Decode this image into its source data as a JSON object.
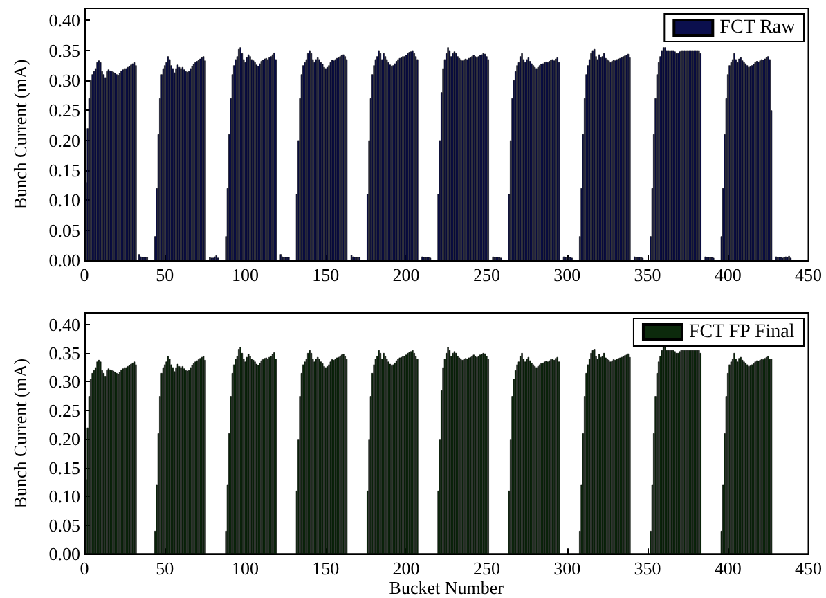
{
  "chart_data": [
    {
      "type": "bar",
      "ylabel": "Bunch Current (mA)",
      "legend": "top right",
      "grid": false,
      "xlim": [
        0,
        450
      ],
      "xticks": [
        0,
        50,
        100,
        150,
        200,
        250,
        300,
        350,
        400,
        450
      ],
      "ylim": [
        0,
        0.42
      ],
      "yticks": [
        {
          "value": 0,
          "label": "0.00"
        },
        {
          "value": 0.05,
          "label": "0.05"
        },
        {
          "value": 0.1,
          "label": "0.10"
        },
        {
          "value": 0.15,
          "label": "0.15"
        },
        {
          "value": 0.2,
          "label": "0.20"
        },
        {
          "value": 0.25,
          "label": "0.25"
        },
        {
          "value": 0.3,
          "label": "0.30"
        },
        {
          "value": 0.35,
          "label": "0.35"
        },
        {
          "value": 0.4,
          "label": "0.40"
        }
      ],
      "series": [
        {
          "name": "FCT Raw",
          "color": "#0b0f4d",
          "x": [
            1,
            2,
            3,
            4,
            5,
            6,
            7,
            8,
            9,
            10,
            11,
            12,
            13,
            14,
            15,
            16,
            17,
            18,
            19,
            20,
            21,
            22,
            23,
            24,
            25,
            26,
            27,
            28,
            29,
            30,
            31,
            32,
            34,
            35,
            36,
            37,
            38,
            39,
            44,
            45,
            46,
            47,
            48,
            49,
            50,
            51,
            52,
            53,
            54,
            55,
            56,
            57,
            58,
            59,
            60,
            61,
            62,
            63,
            64,
            65,
            66,
            67,
            68,
            69,
            70,
            71,
            72,
            73,
            74,
            75,
            78,
            79,
            80,
            81,
            82,
            83,
            88,
            89,
            90,
            91,
            92,
            93,
            94,
            95,
            96,
            97,
            98,
            99,
            100,
            101,
            102,
            103,
            104,
            105,
            106,
            107,
            108,
            109,
            110,
            111,
            112,
            113,
            114,
            115,
            116,
            117,
            118,
            119,
            122,
            123,
            124,
            125,
            126,
            127,
            132,
            133,
            134,
            135,
            136,
            137,
            138,
            139,
            140,
            141,
            142,
            143,
            144,
            145,
            146,
            147,
            148,
            149,
            150,
            151,
            152,
            153,
            154,
            155,
            156,
            157,
            158,
            159,
            160,
            161,
            162,
            163,
            166,
            167,
            168,
            169,
            170,
            171,
            176,
            177,
            178,
            179,
            180,
            181,
            182,
            183,
            184,
            185,
            186,
            187,
            188,
            189,
            190,
            191,
            192,
            193,
            194,
            195,
            196,
            197,
            198,
            199,
            200,
            201,
            202,
            203,
            204,
            205,
            206,
            207,
            210,
            211,
            212,
            213,
            214,
            215,
            220,
            221,
            222,
            223,
            224,
            225,
            226,
            227,
            228,
            229,
            230,
            231,
            232,
            233,
            234,
            235,
            236,
            237,
            238,
            239,
            240,
            241,
            242,
            243,
            244,
            245,
            246,
            247,
            248,
            249,
            250,
            251,
            254,
            255,
            256,
            257,
            258,
            259,
            264,
            265,
            266,
            267,
            268,
            269,
            270,
            271,
            272,
            273,
            274,
            275,
            276,
            277,
            278,
            279,
            280,
            281,
            282,
            283,
            284,
            285,
            286,
            287,
            288,
            289,
            290,
            291,
            292,
            293,
            294,
            295,
            298,
            299,
            300,
            301,
            302,
            303,
            308,
            309,
            310,
            311,
            312,
            313,
            314,
            315,
            316,
            317,
            318,
            319,
            320,
            321,
            322,
            323,
            324,
            325,
            326,
            327,
            328,
            329,
            330,
            331,
            332,
            333,
            334,
            335,
            336,
            337,
            338,
            339,
            342,
            343,
            344,
            345,
            346,
            347,
            352,
            353,
            354,
            355,
            356,
            357,
            358,
            359,
            360,
            361,
            362,
            363,
            364,
            365,
            366,
            367,
            368,
            369,
            370,
            371,
            372,
            373,
            374,
            375,
            376,
            377,
            378,
            379,
            380,
            381,
            382,
            383,
            386,
            387,
            388,
            389,
            390,
            391,
            396,
            397,
            398,
            399,
            400,
            401,
            402,
            403,
            404,
            405,
            406,
            407,
            408,
            409,
            410,
            411,
            412,
            413,
            414,
            415,
            416,
            417,
            418,
            419,
            420,
            421,
            422,
            423,
            424,
            425,
            426,
            427,
            430,
            431,
            432,
            433,
            434,
            435,
            436,
            437,
            438,
            439
          ],
          "values": [
            0.13,
            0.22,
            0.27,
            0.3,
            0.31,
            0.315,
            0.32,
            0.33,
            0.333,
            0.33,
            0.315,
            0.31,
            0.305,
            0.315,
            0.318,
            0.316,
            0.315,
            0.314,
            0.312,
            0.31,
            0.308,
            0.312,
            0.316,
            0.318,
            0.32,
            0.32,
            0.322,
            0.324,
            0.326,
            0.328,
            0.33,
            0.325,
            0.01,
            0.006,
            0.005,
            0.005,
            0.005,
            0.005,
            0.04,
            0.12,
            0.21,
            0.27,
            0.31,
            0.32,
            0.325,
            0.33,
            0.34,
            0.335,
            0.325,
            0.32,
            0.313,
            0.32,
            0.326,
            0.322,
            0.32,
            0.322,
            0.318,
            0.315,
            0.314,
            0.315,
            0.32,
            0.324,
            0.327,
            0.33,
            0.332,
            0.334,
            0.336,
            0.338,
            0.34,
            0.333,
            0.005,
            0.004,
            0.004,
            0.006,
            0.008,
            0.004,
            0.04,
            0.12,
            0.21,
            0.27,
            0.31,
            0.325,
            0.335,
            0.34,
            0.352,
            0.355,
            0.345,
            0.335,
            0.33,
            0.338,
            0.343,
            0.34,
            0.335,
            0.333,
            0.33,
            0.326,
            0.324,
            0.328,
            0.332,
            0.334,
            0.336,
            0.337,
            0.335,
            0.338,
            0.34,
            0.343,
            0.346,
            0.335,
            0.01,
            0.006,
            0.005,
            0.005,
            0.005,
            0.005,
            0.11,
            0.2,
            0.27,
            0.31,
            0.325,
            0.33,
            0.335,
            0.345,
            0.35,
            0.345,
            0.335,
            0.33,
            0.335,
            0.338,
            0.335,
            0.33,
            0.327,
            0.322,
            0.32,
            0.322,
            0.325,
            0.33,
            0.334,
            0.333,
            0.335,
            0.337,
            0.338,
            0.34,
            0.342,
            0.343,
            0.34,
            0.335,
            0.009,
            0.006,
            0.005,
            0.005,
            0.005,
            0.005,
            0.11,
            0.2,
            0.27,
            0.31,
            0.325,
            0.335,
            0.34,
            0.35,
            0.345,
            0.335,
            0.345,
            0.34,
            0.335,
            0.33,
            0.326,
            0.323,
            0.325,
            0.328,
            0.332,
            0.335,
            0.337,
            0.338,
            0.34,
            0.34,
            0.342,
            0.345,
            0.347,
            0.348,
            0.35,
            0.345,
            0.34,
            0.335,
            0.006,
            0.005,
            0.005,
            0.005,
            0.005,
            0.004,
            0.11,
            0.2,
            0.28,
            0.32,
            0.335,
            0.345,
            0.355,
            0.35,
            0.34,
            0.345,
            0.348,
            0.345,
            0.34,
            0.337,
            0.335,
            0.333,
            0.335,
            0.336,
            0.335,
            0.337,
            0.338,
            0.34,
            0.342,
            0.34,
            0.338,
            0.34,
            0.342,
            0.343,
            0.345,
            0.344,
            0.34,
            0.335,
            0.006,
            0.005,
            0.005,
            0.005,
            0.005,
            0.004,
            0.11,
            0.2,
            0.27,
            0.3,
            0.315,
            0.325,
            0.33,
            0.34,
            0.345,
            0.335,
            0.33,
            0.335,
            0.338,
            0.332,
            0.328,
            0.325,
            0.322,
            0.32,
            0.322,
            0.325,
            0.327,
            0.328,
            0.33,
            0.331,
            0.33,
            0.332,
            0.334,
            0.335,
            0.333,
            0.336,
            0.338,
            0.33,
            0.006,
            0.005,
            0.005,
            0.005,
            0.005,
            0.004,
            0.04,
            0.12,
            0.21,
            0.27,
            0.31,
            0.325,
            0.335,
            0.345,
            0.35,
            0.352,
            0.34,
            0.335,
            0.343,
            0.338,
            0.34,
            0.345,
            0.337,
            0.335,
            0.333,
            0.33,
            0.332,
            0.334,
            0.333,
            0.335,
            0.336,
            0.337,
            0.338,
            0.34,
            0.341,
            0.342,
            0.344,
            0.338,
            0.006,
            0.005,
            0.005,
            0.005,
            0.005,
            0.004,
            0.04,
            0.12,
            0.21,
            0.27,
            0.31,
            0.33,
            0.34,
            0.35,
            0.355,
            0.355,
            0.35,
            0.35,
            0.35,
            0.35,
            0.35,
            0.348,
            0.345,
            0.345,
            0.348,
            0.35,
            0.35,
            0.35,
            0.35,
            0.35,
            0.35,
            0.35,
            0.35,
            0.35,
            0.35,
            0.35,
            0.35,
            0.345,
            0.006,
            0.005,
            0.005,
            0.005,
            0.005,
            0.004,
            0.04,
            0.12,
            0.21,
            0.27,
            0.31,
            0.325,
            0.33,
            0.335,
            0.345,
            0.335,
            0.33,
            0.336,
            0.338,
            0.333,
            0.33,
            0.328,
            0.325,
            0.322,
            0.323,
            0.325,
            0.327,
            0.33,
            0.332,
            0.331,
            0.333,
            0.335,
            0.334,
            0.336,
            0.338,
            0.34,
            0.335,
            0.25,
            0.006,
            0.005,
            0.005,
            0.005,
            0.004,
            0.005,
            0.006,
            0.005,
            0.007,
            0.004
          ]
        }
      ]
    },
    {
      "type": "bar",
      "ylabel": "Bunch Current (mA)",
      "xlabel": "Bucket Number",
      "legend": "top right",
      "grid": false,
      "xlim": [
        0,
        450
      ],
      "xticks": [
        0,
        50,
        100,
        150,
        200,
        250,
        300,
        350,
        400,
        450
      ],
      "ylim": [
        0,
        0.42
      ],
      "yticks": [
        {
          "value": 0,
          "label": "0.00"
        },
        {
          "value": 0.05,
          "label": "0.05"
        },
        {
          "value": 0.1,
          "label": "0.10"
        },
        {
          "value": 0.15,
          "label": "0.15"
        },
        {
          "value": 0.2,
          "label": "0.20"
        },
        {
          "value": 0.25,
          "label": "0.25"
        },
        {
          "value": 0.3,
          "label": "0.30"
        },
        {
          "value": 0.35,
          "label": "0.35"
        },
        {
          "value": 0.4,
          "label": "0.40"
        }
      ],
      "series": [
        {
          "name": "FCT FP Final",
          "color": "#0c2a0c",
          "x": [
            1,
            2,
            3,
            4,
            5,
            6,
            7,
            8,
            9,
            10,
            11,
            12,
            13,
            14,
            15,
            16,
            17,
            18,
            19,
            20,
            21,
            22,
            23,
            24,
            25,
            26,
            27,
            28,
            29,
            30,
            31,
            32,
            44,
            45,
            46,
            47,
            48,
            49,
            50,
            51,
            52,
            53,
            54,
            55,
            56,
            57,
            58,
            59,
            60,
            61,
            62,
            63,
            64,
            65,
            66,
            67,
            68,
            69,
            70,
            71,
            72,
            73,
            74,
            75,
            88,
            89,
            90,
            91,
            92,
            93,
            94,
            95,
            96,
            97,
            98,
            99,
            100,
            101,
            102,
            103,
            104,
            105,
            106,
            107,
            108,
            109,
            110,
            111,
            112,
            113,
            114,
            115,
            116,
            117,
            118,
            119,
            132,
            133,
            134,
            135,
            136,
            137,
            138,
            139,
            140,
            141,
            142,
            143,
            144,
            145,
            146,
            147,
            148,
            149,
            150,
            151,
            152,
            153,
            154,
            155,
            156,
            157,
            158,
            159,
            160,
            161,
            162,
            163,
            176,
            177,
            178,
            179,
            180,
            181,
            182,
            183,
            184,
            185,
            186,
            187,
            188,
            189,
            190,
            191,
            192,
            193,
            194,
            195,
            196,
            197,
            198,
            199,
            200,
            201,
            202,
            203,
            204,
            205,
            206,
            207,
            220,
            221,
            222,
            223,
            224,
            225,
            226,
            227,
            228,
            229,
            230,
            231,
            232,
            233,
            234,
            235,
            236,
            237,
            238,
            239,
            240,
            241,
            242,
            243,
            244,
            245,
            246,
            247,
            248,
            249,
            250,
            251,
            264,
            265,
            266,
            267,
            268,
            269,
            270,
            271,
            272,
            273,
            274,
            275,
            276,
            277,
            278,
            279,
            280,
            281,
            282,
            283,
            284,
            285,
            286,
            287,
            288,
            289,
            290,
            291,
            292,
            293,
            294,
            295,
            308,
            309,
            310,
            311,
            312,
            313,
            314,
            315,
            316,
            317,
            318,
            319,
            320,
            321,
            322,
            323,
            324,
            325,
            326,
            327,
            328,
            329,
            330,
            331,
            332,
            333,
            334,
            335,
            336,
            337,
            338,
            339,
            352,
            353,
            354,
            355,
            356,
            357,
            358,
            359,
            360,
            361,
            362,
            363,
            364,
            365,
            366,
            367,
            368,
            369,
            370,
            371,
            372,
            373,
            374,
            375,
            376,
            377,
            378,
            379,
            380,
            381,
            382,
            383,
            396,
            397,
            398,
            399,
            400,
            401,
            402,
            403,
            404,
            405,
            406,
            407,
            408,
            409,
            410,
            411,
            412,
            413,
            414,
            415,
            416,
            417,
            418,
            419,
            420,
            421,
            422,
            423,
            424,
            425,
            426,
            427
          ],
          "values": [
            0.13,
            0.22,
            0.275,
            0.305,
            0.315,
            0.32,
            0.325,
            0.335,
            0.338,
            0.335,
            0.32,
            0.315,
            0.31,
            0.32,
            0.323,
            0.321,
            0.32,
            0.319,
            0.317,
            0.315,
            0.313,
            0.317,
            0.321,
            0.323,
            0.325,
            0.325,
            0.327,
            0.329,
            0.331,
            0.333,
            0.335,
            0.33,
            0.04,
            0.12,
            0.21,
            0.275,
            0.315,
            0.325,
            0.33,
            0.335,
            0.345,
            0.34,
            0.33,
            0.325,
            0.318,
            0.325,
            0.331,
            0.327,
            0.325,
            0.327,
            0.323,
            0.32,
            0.319,
            0.32,
            0.325,
            0.329,
            0.332,
            0.335,
            0.337,
            0.339,
            0.341,
            0.343,
            0.345,
            0.338,
            0.04,
            0.12,
            0.21,
            0.275,
            0.315,
            0.33,
            0.34,
            0.345,
            0.357,
            0.36,
            0.35,
            0.34,
            0.335,
            0.343,
            0.348,
            0.345,
            0.34,
            0.338,
            0.335,
            0.331,
            0.329,
            0.333,
            0.337,
            0.339,
            0.341,
            0.342,
            0.34,
            0.343,
            0.345,
            0.348,
            0.351,
            0.34,
            0.11,
            0.2,
            0.275,
            0.315,
            0.33,
            0.335,
            0.34,
            0.35,
            0.355,
            0.35,
            0.34,
            0.335,
            0.34,
            0.343,
            0.34,
            0.335,
            0.332,
            0.327,
            0.325,
            0.327,
            0.33,
            0.335,
            0.339,
            0.338,
            0.34,
            0.342,
            0.343,
            0.345,
            0.347,
            0.348,
            0.345,
            0.34,
            0.11,
            0.2,
            0.275,
            0.315,
            0.33,
            0.34,
            0.345,
            0.355,
            0.35,
            0.34,
            0.35,
            0.345,
            0.34,
            0.335,
            0.331,
            0.328,
            0.33,
            0.333,
            0.337,
            0.34,
            0.342,
            0.343,
            0.345,
            0.345,
            0.347,
            0.35,
            0.352,
            0.353,
            0.355,
            0.35,
            0.345,
            0.34,
            0.11,
            0.2,
            0.285,
            0.325,
            0.34,
            0.35,
            0.36,
            0.355,
            0.345,
            0.35,
            0.353,
            0.35,
            0.345,
            0.342,
            0.34,
            0.338,
            0.34,
            0.341,
            0.34,
            0.342,
            0.343,
            0.345,
            0.347,
            0.345,
            0.343,
            0.345,
            0.347,
            0.348,
            0.35,
            0.349,
            0.345,
            0.34,
            0.11,
            0.2,
            0.275,
            0.305,
            0.32,
            0.33,
            0.335,
            0.345,
            0.35,
            0.34,
            0.335,
            0.34,
            0.343,
            0.337,
            0.333,
            0.33,
            0.327,
            0.325,
            0.327,
            0.33,
            0.332,
            0.333,
            0.335,
            0.336,
            0.335,
            0.337,
            0.339,
            0.34,
            0.338,
            0.341,
            0.343,
            0.335,
            0.04,
            0.12,
            0.21,
            0.275,
            0.315,
            0.33,
            0.34,
            0.35,
            0.355,
            0.357,
            0.345,
            0.34,
            0.348,
            0.343,
            0.345,
            0.35,
            0.342,
            0.34,
            0.338,
            0.335,
            0.337,
            0.339,
            0.338,
            0.34,
            0.341,
            0.342,
            0.343,
            0.345,
            0.346,
            0.347,
            0.349,
            0.343,
            0.04,
            0.12,
            0.21,
            0.275,
            0.315,
            0.335,
            0.345,
            0.355,
            0.36,
            0.36,
            0.355,
            0.355,
            0.355,
            0.355,
            0.355,
            0.353,
            0.35,
            0.35,
            0.353,
            0.355,
            0.355,
            0.355,
            0.355,
            0.355,
            0.355,
            0.355,
            0.355,
            0.355,
            0.355,
            0.355,
            0.355,
            0.35,
            0.04,
            0.12,
            0.21,
            0.275,
            0.315,
            0.33,
            0.335,
            0.34,
            0.35,
            0.34,
            0.335,
            0.341,
            0.343,
            0.338,
            0.335,
            0.333,
            0.33,
            0.327,
            0.328,
            0.33,
            0.332,
            0.335,
            0.337,
            0.336,
            0.338,
            0.34,
            0.339,
            0.341,
            0.343,
            0.345,
            0.34,
            0.34
          ]
        }
      ]
    }
  ]
}
